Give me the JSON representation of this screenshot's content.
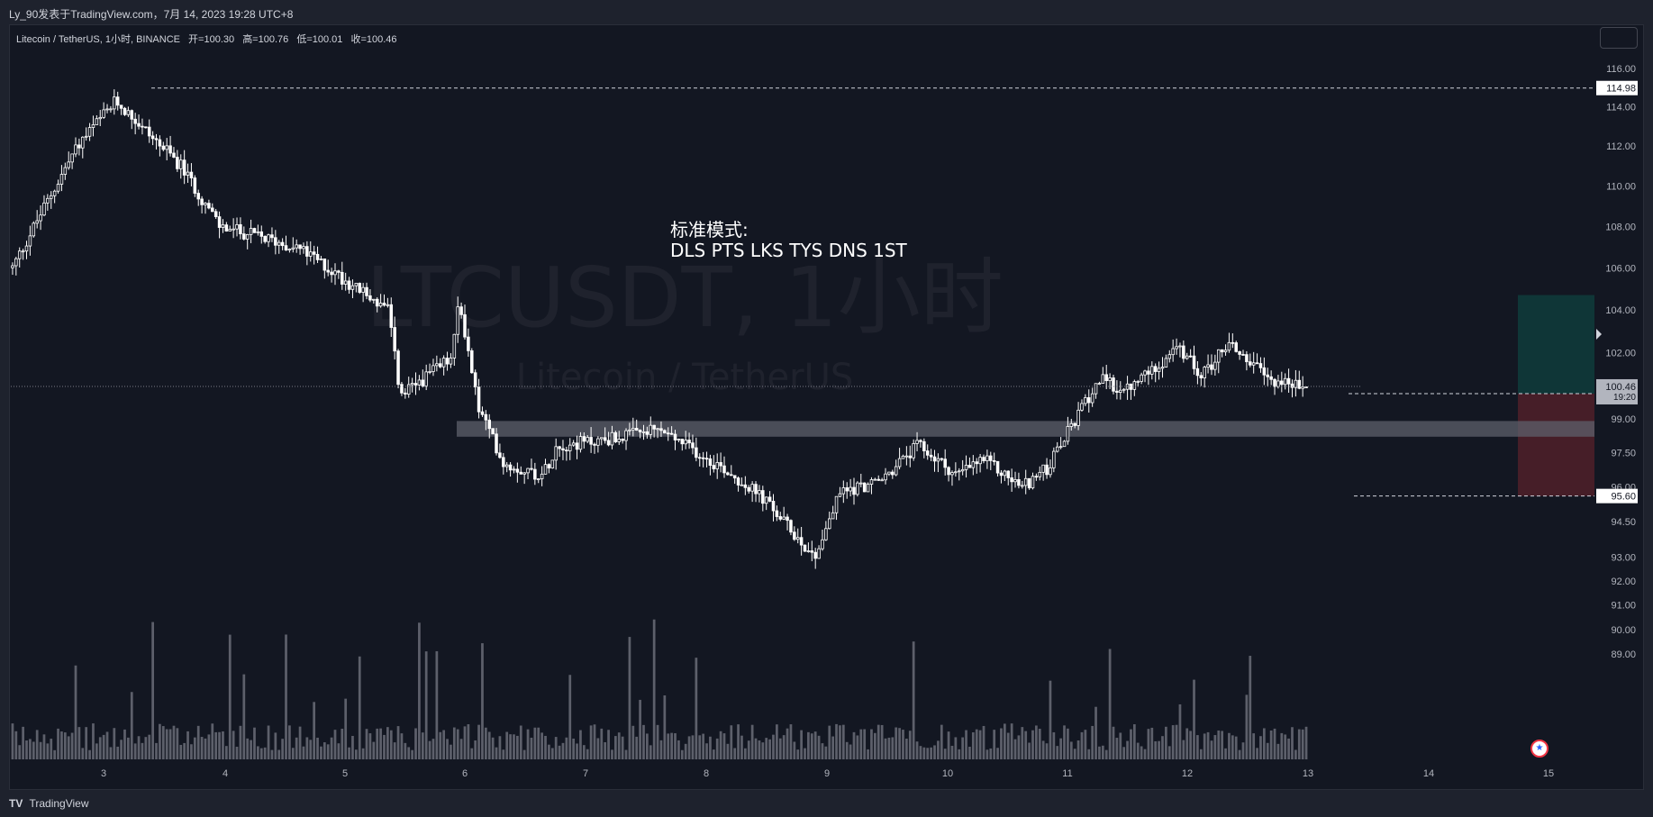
{
  "topbar": {
    "text": "Ly_90发表于TradingView.com，7月 14, 2023 19:28 UTC+8"
  },
  "legend": {
    "symbol": "Litecoin / TetherUS, 1小时, BINANCE",
    "open": "开=100.30",
    "high": "高=100.76",
    "low": "低=100.01",
    "close": "收=100.46"
  },
  "watermark": {
    "main": "LTCUSDT, 1小时",
    "sub": "Litecoin / TetherUS"
  },
  "annotation": {
    "line1": "标准模式:",
    "line2": "DLS PTS LKS TYS DNS 1ST"
  },
  "brand": {
    "logo_icon": "tradingview-logo-icon",
    "label": "TradingView"
  },
  "colors": {
    "background": "#131722",
    "candle": "#ffffff",
    "volume": "#5d606b",
    "support_zone": "#5d606b",
    "profit_zone": "#0f3a3a",
    "loss_zone": "#4d1f29",
    "price_line": "#787b86"
  },
  "chart_data": {
    "type": "candlestick",
    "symbol": "LTCUSDT",
    "interval": "1小时",
    "exchange": "BINANCE",
    "x_tick_labels": [
      "3",
      "4",
      "5",
      "6",
      "7",
      "8",
      "9",
      "10",
      "11",
      "12",
      "13",
      "14",
      "15"
    ],
    "y_tick_labels": [
      "116.00",
      "114.00",
      "112.00",
      "110.00",
      "108.00",
      "106.00",
      "104.00",
      "102.00",
      "99.00",
      "97.50",
      "96.00",
      "94.50",
      "93.00",
      "92.00",
      "91.00",
      "90.00",
      "89.00"
    ],
    "y_scale": "log",
    "ylim": [
      88.5,
      117.0
    ],
    "last_price": {
      "value": "100.46",
      "countdown": "19:20"
    },
    "price_labels": [
      "114.98",
      "100.13",
      "95.60"
    ],
    "horizontal_levels": [
      114.98,
      100.13,
      95.6
    ],
    "support_zone": [
      98.2,
      98.9
    ],
    "position": {
      "entry": 100.13,
      "target": 104.7,
      "stop": 95.6
    },
    "anchor_path": {
      "x": [
        0,
        0.05,
        0.08,
        0.13,
        0.16,
        0.22,
        0.29,
        0.3,
        0.34,
        0.345,
        0.36,
        0.38,
        0.41,
        0.42,
        0.45,
        0.5,
        0.55,
        0.58,
        0.62,
        0.64,
        0.67,
        0.7,
        0.73,
        0.75,
        0.78,
        0.8,
        0.84,
        0.86,
        0.9,
        0.92,
        0.94,
        0.97,
        1.0
      ],
      "y": [
        106.0,
        112.0,
        114.3,
        111.0,
        108.0,
        107.0,
        104.0,
        100.0,
        101.8,
        104.5,
        99.5,
        97.0,
        96.5,
        97.8,
        98.0,
        98.5,
        96.8,
        95.5,
        93.0,
        95.8,
        96.2,
        97.8,
        96.5,
        97.2,
        96.0,
        96.8,
        100.8,
        100.2,
        102.2,
        101.0,
        102.5,
        100.8,
        100.4
      ]
    },
    "volume_ylim": [
      0,
      1
    ]
  }
}
